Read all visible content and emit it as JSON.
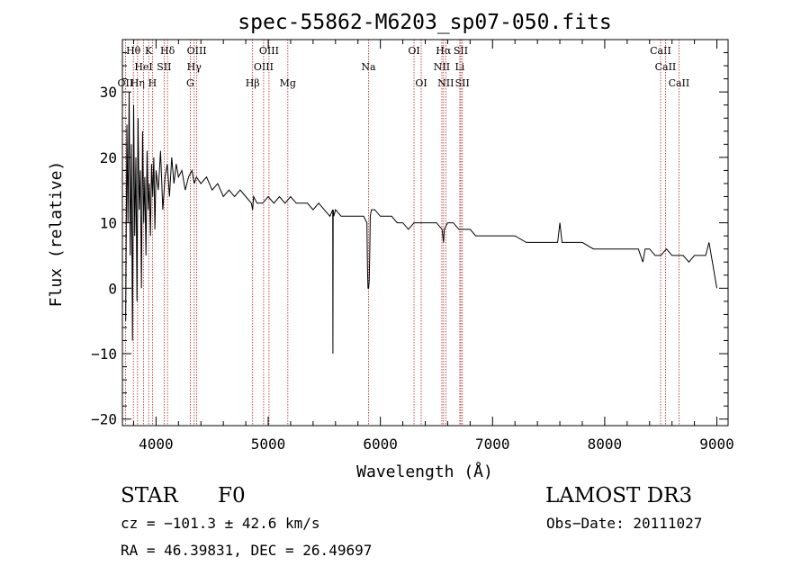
{
  "chart_data": {
    "type": "line",
    "title": "spec-55862-M6203_sp07-050.fits",
    "xlabel": "Wavelength (Å)",
    "ylabel": "Flux (relative)",
    "xlim": [
      3700,
      9100
    ],
    "ylim": [
      -21,
      38
    ],
    "x_ticks": [
      4000,
      5000,
      6000,
      7000,
      8000,
      9000
    ],
    "y_ticks": [
      -20,
      -10,
      0,
      10,
      20,
      30
    ],
    "line_color": "#000000",
    "marker_color": "#b22222",
    "series": [
      {
        "name": "spectrum",
        "x": [
          3730,
          3740,
          3750,
          3760,
          3770,
          3780,
          3790,
          3800,
          3810,
          3820,
          3830,
          3840,
          3850,
          3860,
          3870,
          3880,
          3890,
          3900,
          3910,
          3920,
          3930,
          3940,
          3950,
          3960,
          3970,
          3980,
          3990,
          4000,
          4020,
          4040,
          4060,
          4080,
          4100,
          4120,
          4140,
          4160,
          4180,
          4200,
          4230,
          4260,
          4290,
          4320,
          4340,
          4360,
          4400,
          4450,
          4500,
          4550,
          4600,
          4650,
          4700,
          4750,
          4800,
          4850,
          4861,
          4870,
          4900,
          4950,
          5000,
          5050,
          5100,
          5150,
          5200,
          5250,
          5300,
          5350,
          5400,
          5450,
          5500,
          5550,
          5575,
          5577,
          5579,
          5585,
          5600,
          5650,
          5700,
          5750,
          5800,
          5850,
          5880,
          5885,
          5890,
          5895,
          5900,
          5905,
          5910,
          5920,
          5950,
          6000,
          6050,
          6100,
          6150,
          6200,
          6250,
          6300,
          6350,
          6400,
          6450,
          6500,
          6550,
          6563,
          6570,
          6600,
          6650,
          6700,
          6750,
          6800,
          6850,
          6900,
          6950,
          7000,
          7100,
          7200,
          7300,
          7400,
          7500,
          7580,
          7600,
          7620,
          7700,
          7800,
          7900,
          8000,
          8100,
          8200,
          8300,
          8340,
          8360,
          8400,
          8450,
          8500,
          8550,
          8600,
          8650,
          8700,
          8750,
          8800,
          8850,
          8900,
          8930,
          8950,
          8970,
          9000
        ],
        "y": [
          -5,
          25,
          10,
          30,
          5,
          22,
          -8,
          28,
          8,
          20,
          -2,
          26,
          12,
          18,
          0,
          24,
          10,
          17,
          5,
          21,
          12,
          16,
          8,
          19,
          14,
          20,
          9,
          18,
          15,
          21,
          12,
          17,
          19,
          14,
          20,
          16,
          19,
          17,
          18,
          15,
          17,
          18,
          16,
          17,
          16,
          17,
          15,
          16,
          14,
          15,
          14,
          15,
          14,
          13,
          12,
          14,
          13,
          13,
          14,
          13,
          14,
          13,
          14,
          13,
          13,
          13,
          12,
          13,
          12,
          11,
          12,
          -10,
          12,
          11,
          12,
          11,
          11,
          11,
          11,
          11,
          10,
          3,
          0,
          0,
          1,
          5,
          11,
          12,
          12,
          11,
          11,
          11,
          10,
          10,
          9,
          10,
          10,
          10,
          10,
          10,
          9,
          7,
          9,
          10,
          10,
          9,
          9,
          9,
          8,
          8,
          8,
          8,
          8,
          8,
          7,
          7,
          7,
          7,
          10,
          7,
          7,
          7,
          6,
          6,
          6,
          6,
          6,
          4,
          6,
          6,
          5,
          5,
          6,
          5,
          5,
          5,
          4,
          5,
          5,
          5,
          7,
          5,
          3,
          0
        ]
      }
    ],
    "line_markers": [
      {
        "label": "OII",
        "wave": 3727,
        "row": 3
      },
      {
        "label": "Hθ",
        "wave": 3798,
        "row": 1
      },
      {
        "label": "Hη",
        "wave": 3835,
        "row": 3
      },
      {
        "label": "HeI",
        "wave": 3889,
        "row": 2
      },
      {
        "label": "K",
        "wave": 3934,
        "row": 1
      },
      {
        "label": "H",
        "wave": 3968,
        "row": 3
      },
      {
        "label": "SII",
        "wave": 4072,
        "row": 2
      },
      {
        "label": "Hδ",
        "wave": 4102,
        "row": 1
      },
      {
        "label": "G",
        "wave": 4305,
        "row": 3
      },
      {
        "label": "Hγ",
        "wave": 4340,
        "row": 2
      },
      {
        "label": "OIII",
        "wave": 4363,
        "row": 1
      },
      {
        "label": "Hβ",
        "wave": 4861,
        "row": 3
      },
      {
        "label": "OIII",
        "wave": 4959,
        "row": 2
      },
      {
        "label": "OIII",
        "wave": 5007,
        "row": 1
      },
      {
        "label": "Mg",
        "wave": 5175,
        "row": 3
      },
      {
        "label": "Na",
        "wave": 5894,
        "row": 2
      },
      {
        "label": "OI",
        "wave": 6300,
        "row": 1
      },
      {
        "label": "OI",
        "wave": 6364,
        "row": 3
      },
      {
        "label": "NII",
        "wave": 6548,
        "row": 2
      },
      {
        "label": "Hα",
        "wave": 6563,
        "row": 1
      },
      {
        "label": "NII",
        "wave": 6583,
        "row": 3
      },
      {
        "label": "SII",
        "wave": 6717,
        "row": 1
      },
      {
        "label": "Li",
        "wave": 6708,
        "row": 2
      },
      {
        "label": "SII",
        "wave": 6731,
        "row": 3
      },
      {
        "label": "CaII",
        "wave": 8498,
        "row": 1
      },
      {
        "label": "CaII",
        "wave": 8542,
        "row": 2
      },
      {
        "label": "CaII",
        "wave": 8662,
        "row": 3
      }
    ]
  },
  "info": {
    "class_label": "STAR",
    "subclass": "F0",
    "survey": "LAMOST DR3",
    "cz": "cz = −101.3 ± 42.6 km/s",
    "obs_date": "Obs−Date: 20111027",
    "coords": "RA =  46.39831, DEC =  26.49697"
  }
}
